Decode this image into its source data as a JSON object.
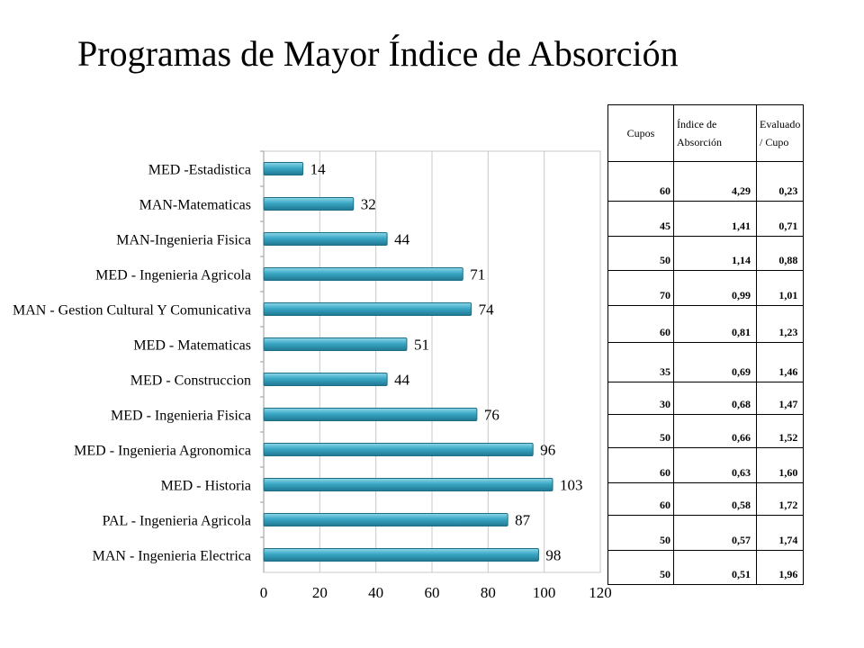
{
  "title": "Programas de Mayor Índice de Absorción",
  "chart_data": {
    "type": "bar",
    "orientation": "horizontal",
    "title": "",
    "xlabel": "",
    "ylabel": "",
    "categories": [
      "MED -Estadistica",
      "MAN-Matematicas",
      "MAN-Ingenieria Fisica",
      "MED - Ingenieria Agricola",
      "MAN - Gestion Cultural Y Comunicativa",
      "MED - Matematicas",
      "MED - Construccion",
      "MED - Ingenieria Fisica",
      "MED - Ingenieria Agronomica",
      "MED - Historia",
      "PAL - Ingenieria Agricola",
      "MAN - Ingenieria Electrica"
    ],
    "values": [
      14,
      32,
      44,
      71,
      74,
      51,
      44,
      76,
      96,
      103,
      87,
      98
    ],
    "xlim": [
      0,
      120
    ],
    "xticks": [
      0,
      20,
      40,
      60,
      80,
      100,
      120
    ],
    "grid": "vertical",
    "legend": "none",
    "bar_color": "#3AA7C4",
    "bar_edge_color": "#1E6F85"
  },
  "table": {
    "headers": [
      "Cupos",
      "Índice de Absorción",
      "Evaluado / Cupo"
    ],
    "rows": [
      [
        "60",
        "4,29",
        "0,23"
      ],
      [
        "45",
        "1,41",
        "0,71"
      ],
      [
        "50",
        "1,14",
        "0,88"
      ],
      [
        "70",
        "0,99",
        "1,01"
      ],
      [
        "60",
        "0,81",
        "1,23"
      ],
      [
        "35",
        "0,69",
        "1,46"
      ],
      [
        "30",
        "0,68",
        "1,47"
      ],
      [
        "50",
        "0,66",
        "1,52"
      ],
      [
        "60",
        "0,63",
        "1,60"
      ],
      [
        "60",
        "0,58",
        "1,72"
      ],
      [
        "50",
        "0,57",
        "1,74"
      ],
      [
        "50",
        "0,51",
        "1,96"
      ]
    ]
  }
}
